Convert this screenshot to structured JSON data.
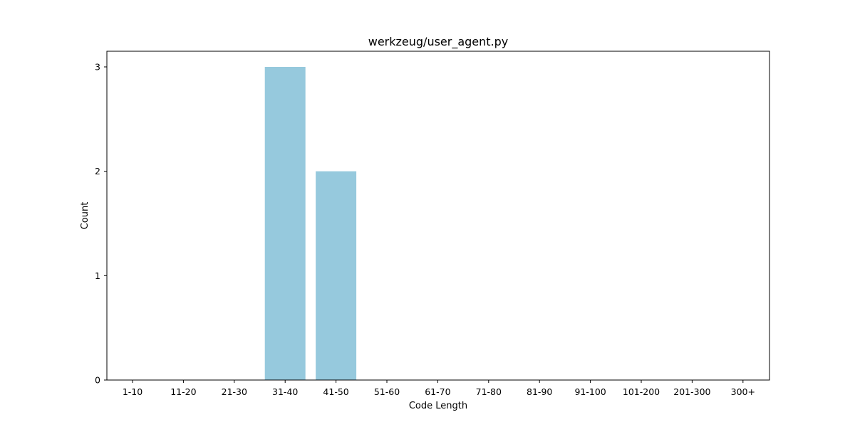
{
  "chart_data": {
    "type": "bar",
    "title": "werkzeug/user_agent.py",
    "xlabel": "Code Length",
    "ylabel": "Count",
    "categories": [
      "1-10",
      "11-20",
      "21-30",
      "31-40",
      "41-50",
      "51-60",
      "61-70",
      "71-80",
      "81-90",
      "91-100",
      "101-200",
      "201-300",
      "300+"
    ],
    "values": [
      0,
      0,
      0,
      3,
      2,
      0,
      0,
      0,
      0,
      0,
      0,
      0,
      0
    ],
    "yticks": [
      0,
      1,
      2,
      3
    ],
    "ylim": [
      0,
      3.15
    ],
    "bar_color": "#96c9dd",
    "grid": false
  }
}
